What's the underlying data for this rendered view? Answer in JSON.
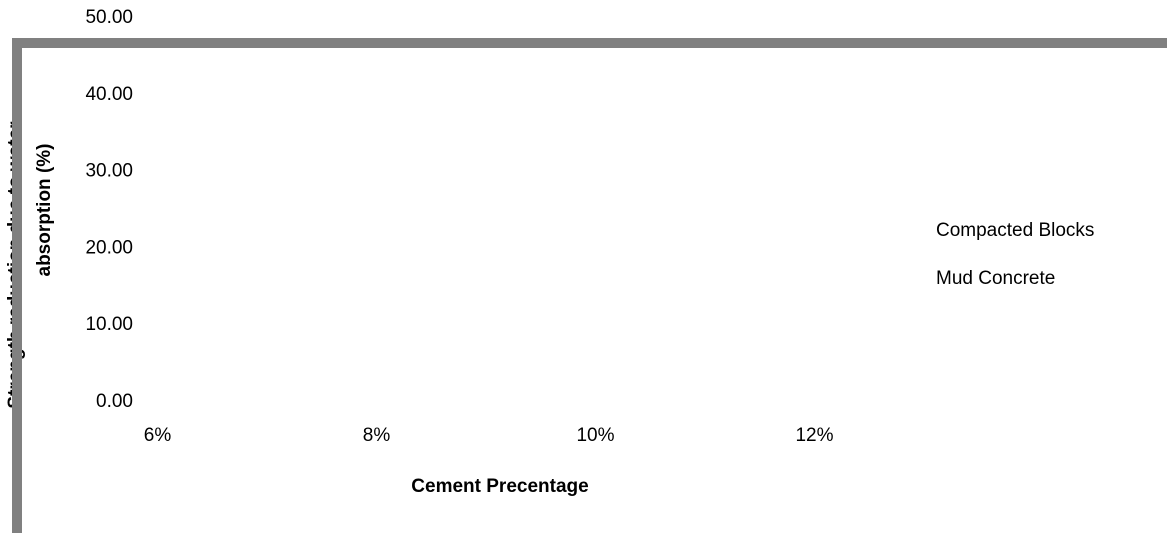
{
  "chart_data": {
    "type": "bar",
    "categories": [
      "6%",
      "8%",
      "10%",
      "12%"
    ],
    "series": [
      {
        "name": "Compacted Blocks",
        "values": [
          null,
          null,
          null,
          null
        ]
      },
      {
        "name": "Mud Concrete",
        "values": [
          null,
          null,
          null,
          null
        ]
      }
    ],
    "ylim": [
      0,
      50
    ],
    "yticks": [
      {
        "value": 0,
        "label": "0.00"
      },
      {
        "value": 10,
        "label": "10.00"
      },
      {
        "value": 20,
        "label": "20.00"
      },
      {
        "value": 30,
        "label": "30.00"
      },
      {
        "value": 40,
        "label": "40.00"
      },
      {
        "value": 50,
        "label": "50.00"
      }
    ],
    "y_label": [
      "Strength reduction due to water",
      "absorption (%)"
    ],
    "x_label": "Cement Precentage"
  }
}
